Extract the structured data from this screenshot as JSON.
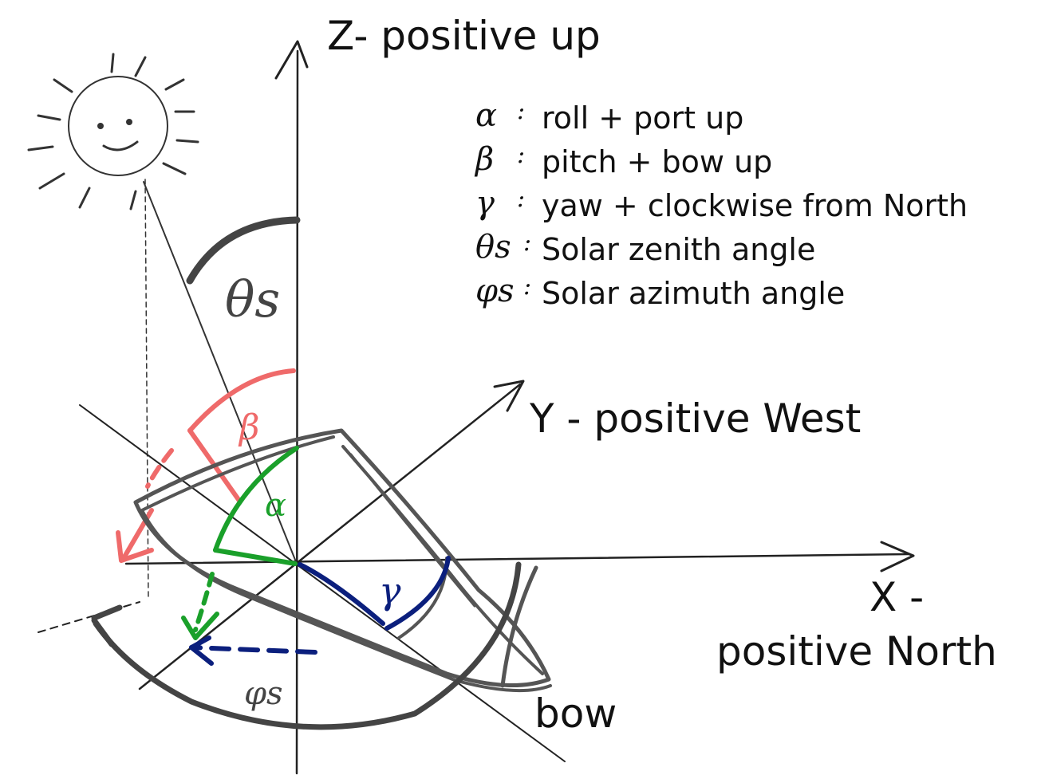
{
  "axes": {
    "z_label": "Z- positive up",
    "y_label": "Y - positive West",
    "x_label_line1": "X -",
    "x_label_line2": "positive North",
    "bow_label": "bow"
  },
  "legend": [
    {
      "symbol": "α",
      "sep": ":",
      "text": "roll + port up"
    },
    {
      "symbol": "β",
      "sep": ":",
      "text": "pitch + bow up"
    },
    {
      "symbol": "γ",
      "sep": ":",
      "text": "yaw + clockwise from North"
    },
    {
      "symbol": "θs",
      "sep": ":",
      "text": "Solar zenith angle"
    },
    {
      "symbol": "φs",
      "sep": ":",
      "text": "Solar azimuth angle"
    }
  ],
  "angle_marks": {
    "theta_s": "θs",
    "beta": "β",
    "alpha": "α",
    "gamma": "γ",
    "phi_s": "φs"
  },
  "colors": {
    "ink": "#111111",
    "pencil": "#555555",
    "pitch": "#ef6a6a",
    "roll": "#1aa02a",
    "yaw": "#0b1f7d"
  }
}
